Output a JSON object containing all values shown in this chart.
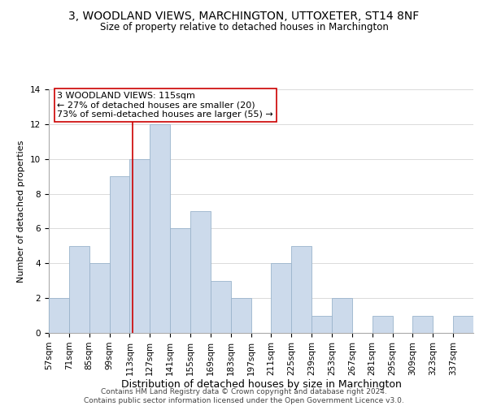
{
  "title": "3, WOODLAND VIEWS, MARCHINGTON, UTTOXETER, ST14 8NF",
  "subtitle": "Size of property relative to detached houses in Marchington",
  "xlabel": "Distribution of detached houses by size in Marchington",
  "ylabel": "Number of detached properties",
  "footer_line1": "Contains HM Land Registry data © Crown copyright and database right 2024.",
  "footer_line2": "Contains public sector information licensed under the Open Government Licence v3.0.",
  "bin_labels": [
    "57sqm",
    "71sqm",
    "85sqm",
    "99sqm",
    "113sqm",
    "127sqm",
    "141sqm",
    "155sqm",
    "169sqm",
    "183sqm",
    "197sqm",
    "211sqm",
    "225sqm",
    "239sqm",
    "253sqm",
    "267sqm",
    "281sqm",
    "295sqm",
    "309sqm",
    "323sqm",
    "337sqm"
  ],
  "bin_edges": [
    57,
    71,
    85,
    99,
    113,
    127,
    141,
    155,
    169,
    183,
    197,
    211,
    225,
    239,
    253,
    267,
    281,
    295,
    309,
    323,
    337,
    351
  ],
  "counts": [
    2,
    5,
    4,
    9,
    10,
    12,
    6,
    7,
    3,
    2,
    0,
    4,
    5,
    1,
    2,
    0,
    1,
    0,
    1,
    0,
    1
  ],
  "bar_color": "#ccdaeb",
  "bar_edge_color": "#9ab4cc",
  "reference_line_x": 115,
  "reference_line_color": "#cc0000",
  "annotation_line1": "3 WOODLAND VIEWS: 115sqm",
  "annotation_line2": "← 27% of detached houses are smaller (20)",
  "annotation_line3": "73% of semi-detached houses are larger (55) →",
  "annotation_box_color": "#ffffff",
  "annotation_box_edge": "#cc0000",
  "ylim": [
    0,
    14
  ],
  "yticks": [
    0,
    2,
    4,
    6,
    8,
    10,
    12,
    14
  ],
  "grid_color": "#cccccc",
  "background_color": "#ffffff",
  "title_fontsize": 10,
  "subtitle_fontsize": 8.5,
  "xlabel_fontsize": 9,
  "ylabel_fontsize": 8,
  "tick_fontsize": 7.5,
  "annotation_fontsize": 8,
  "footer_fontsize": 6.5
}
